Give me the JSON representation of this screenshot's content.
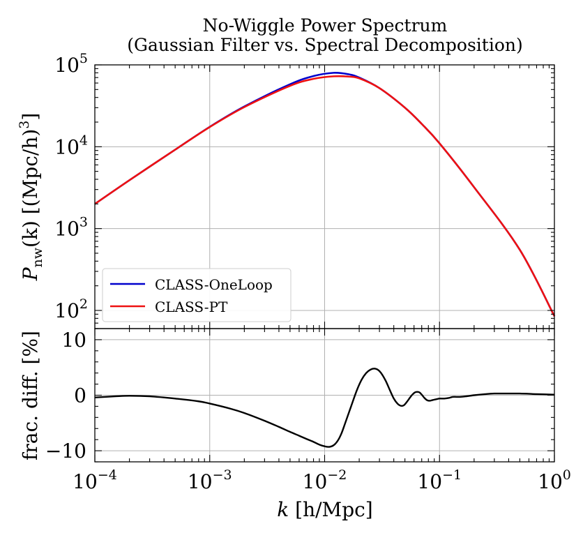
{
  "chart_data": {
    "type": "line",
    "title": [
      "No-Wiggle Power Spectrum",
      "(Gaussian Filter vs. Spectral Decomposition)"
    ],
    "x_axis": {
      "label_var": "k",
      "label_unit": "[h/Mpc]",
      "scale": "log",
      "range": [
        0.0001,
        1
      ],
      "ticks": [
        {
          "base": "10",
          "exp": "−4"
        },
        {
          "base": "10",
          "exp": "−3"
        },
        {
          "base": "10",
          "exp": "−2"
        },
        {
          "base": "10",
          "exp": "−1"
        },
        {
          "base": "10",
          "exp": "0"
        }
      ]
    },
    "top_panel": {
      "ylabel_main": "P",
      "ylabel_sub": "nw",
      "ylabel_arg": "(k) [(Mpc/h)",
      "ylabel_sup": "3",
      "ylabel_close": "]",
      "yscale": "log",
      "ylim": [
        60,
        100000
      ],
      "y_ticks": [
        {
          "base": "10",
          "exp": "2"
        },
        {
          "base": "10",
          "exp": "3"
        },
        {
          "base": "10",
          "exp": "4"
        },
        {
          "base": "10",
          "exp": "5"
        }
      ],
      "legend_position": "lower-left",
      "grid": true,
      "series": [
        {
          "name": "CLASS-OneLoop",
          "color": "#0000cc",
          "k": [
            0.0001,
            0.0002,
            0.0005,
            0.001,
            0.002,
            0.005,
            0.008,
            0.012,
            0.016,
            0.02,
            0.03,
            0.05,
            0.07,
            0.1,
            0.2,
            0.5,
            1.0
          ],
          "pk": [
            2000,
            3900,
            9200,
            17500,
            31000,
            58000,
            73000,
            80000,
            77000,
            70000,
            52000,
            30000,
            19000,
            11000,
            3200,
            550,
            85
          ]
        },
        {
          "name": "CLASS-PT",
          "color": "#ee1111",
          "k": [
            0.0001,
            0.0002,
            0.0005,
            0.001,
            0.002,
            0.005,
            0.008,
            0.012,
            0.016,
            0.02,
            0.03,
            0.05,
            0.07,
            0.1,
            0.2,
            0.5,
            1.0
          ],
          "pk": [
            2000,
            3900,
            9200,
            17400,
            30500,
            55500,
            67500,
            72500,
            72000,
            68500,
            52000,
            30000,
            19000,
            11000,
            3200,
            550,
            85
          ]
        }
      ]
    },
    "bottom_panel": {
      "ylabel": "frac. diff. [%]",
      "ylim": [
        -12,
        12
      ],
      "y_ticks": [
        -10,
        0,
        10
      ],
      "y_tick_labels": [
        "−10",
        "0",
        "10"
      ],
      "grid": true,
      "series": {
        "color": "#000000",
        "k": [
          0.0001,
          0.00015,
          0.0002,
          0.0003,
          0.0005,
          0.0008,
          0.001,
          0.0015,
          0.002,
          0.003,
          0.004,
          0.005,
          0.006,
          0.007,
          0.008,
          0.009,
          0.01,
          0.011,
          0.012,
          0.013,
          0.014,
          0.015,
          0.017,
          0.019,
          0.021,
          0.023,
          0.025,
          0.027,
          0.029,
          0.031,
          0.034,
          0.037,
          0.04,
          0.043,
          0.046,
          0.049,
          0.052,
          0.055,
          0.058,
          0.061,
          0.064,
          0.067,
          0.07,
          0.074,
          0.078,
          0.082,
          0.086,
          0.09,
          0.095,
          0.1,
          0.11,
          0.12,
          0.13,
          0.14,
          0.15,
          0.17,
          0.2,
          0.25,
          0.3,
          0.4,
          0.5,
          0.7,
          1.0
        ],
        "diff": [
          -0.4,
          -0.2,
          -0.1,
          -0.2,
          -0.6,
          -1.1,
          -1.5,
          -2.4,
          -3.2,
          -4.6,
          -5.7,
          -6.6,
          -7.3,
          -7.9,
          -8.4,
          -8.9,
          -9.2,
          -9.3,
          -9.0,
          -8.2,
          -6.9,
          -5.2,
          -2.0,
          0.8,
          2.8,
          4.0,
          4.6,
          4.8,
          4.6,
          4.0,
          2.6,
          0.9,
          -0.6,
          -1.5,
          -1.9,
          -1.8,
          -1.2,
          -0.5,
          0.1,
          0.5,
          0.6,
          0.5,
          0.1,
          -0.5,
          -0.9,
          -1.0,
          -0.9,
          -0.8,
          -0.7,
          -0.6,
          -0.6,
          -0.5,
          -0.3,
          -0.3,
          -0.3,
          -0.2,
          0.0,
          0.2,
          0.3,
          0.3,
          0.3,
          0.2,
          0.1
        ]
      }
    }
  }
}
